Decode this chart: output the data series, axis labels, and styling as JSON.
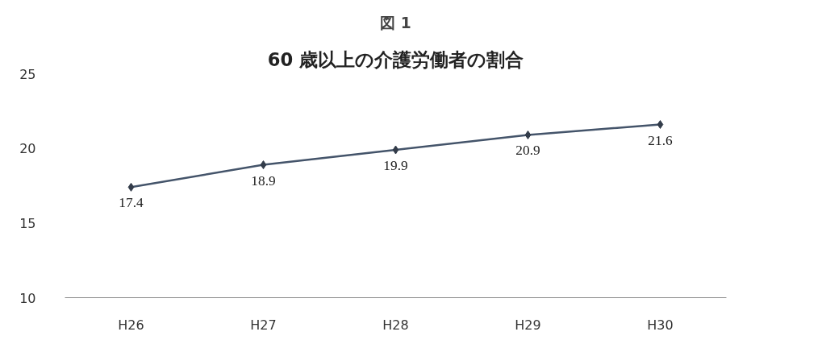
{
  "chart_data": {
    "type": "line",
    "title": "図 1",
    "subtitle": "60 歳以上の介護労働者の割合",
    "categories": [
      "H26",
      "H27",
      "H28",
      "H29",
      "H30"
    ],
    "series": [
      {
        "color": "#44546a",
        "values": [
          17.4,
          18.9,
          19.9,
          20.9,
          21.6
        ]
      }
    ],
    "ylim": [
      10,
      25
    ],
    "yticks": [
      10,
      15,
      20,
      25
    ],
    "marker": "diamond",
    "line_style": "solid",
    "data_labels": true
  }
}
